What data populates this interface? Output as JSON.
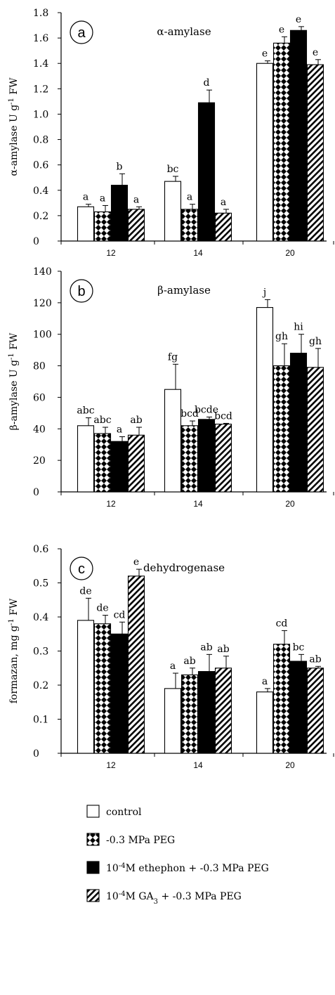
{
  "colors": {
    "axis": "#000000",
    "control_fill": "#ffffff",
    "ethephon_fill": "#000000",
    "pattern_ink": "#000000"
  },
  "legend": [
    {
      "key": "control",
      "pattern": "white",
      "label": "control"
    },
    {
      "key": "peg",
      "pattern": "checker",
      "label": "-0.3 MPa PEG"
    },
    {
      "key": "ethephon",
      "pattern": "black",
      "label_pre": "10",
      "label_sup": "-4",
      "label_post": "M ethephon + -0.3 MPa PEG"
    },
    {
      "key": "ga3",
      "pattern": "diagonal",
      "label_pre": "10",
      "label_sup": "-4",
      "label_mid": "M  GA",
      "label_sub": "3",
      "label_post": " + -0.3 MPa PEG"
    }
  ],
  "chart_data": [
    {
      "type": "bar",
      "panel": "a",
      "inner_title": "α-amylase",
      "ylabel": {
        "pre": "α-amylase U g",
        "sup": "-1",
        "post": " FW"
      },
      "categories": [
        "12",
        "14",
        "20"
      ],
      "ylim": [
        0,
        1.8
      ],
      "yticks": [
        "0",
        "0.2",
        "0.4",
        "0.6",
        "0.8",
        "1.0",
        "1.2",
        "1.4",
        "1.6",
        "1.8"
      ],
      "series": [
        {
          "key": "control",
          "values": [
            0.27,
            0.47,
            1.4
          ],
          "errors": [
            0.02,
            0.04,
            0.02
          ],
          "letters": [
            "a",
            "bc",
            "e"
          ]
        },
        {
          "key": "peg",
          "values": [
            0.23,
            0.25,
            1.56
          ],
          "errors": [
            0.05,
            0.04,
            0.05
          ],
          "letters": [
            "a",
            "a",
            "e"
          ]
        },
        {
          "key": "ethephon",
          "values": [
            0.44,
            1.09,
            1.66
          ],
          "errors": [
            0.09,
            0.1,
            0.03
          ],
          "letters": [
            "b",
            "d",
            "e"
          ]
        },
        {
          "key": "ga3",
          "values": [
            0.25,
            0.22,
            1.39
          ],
          "errors": [
            0.02,
            0.03,
            0.04
          ],
          "letters": [
            "a",
            "a",
            "e"
          ]
        }
      ]
    },
    {
      "type": "bar",
      "panel": "b",
      "inner_title": "β-amylase",
      "ylabel": {
        "pre": "β-amylase U g",
        "sup": "-1",
        "post": " FW"
      },
      "categories": [
        "12",
        "14",
        "20"
      ],
      "ylim": [
        0,
        140
      ],
      "yticks": [
        "0",
        "20",
        "40",
        "60",
        "80",
        "100",
        "120",
        "140"
      ],
      "series": [
        {
          "key": "control",
          "values": [
            42,
            65,
            117
          ],
          "errors": [
            5,
            16,
            5
          ],
          "letters": [
            "abc",
            "fg",
            "j"
          ]
        },
        {
          "key": "peg",
          "values": [
            37,
            42,
            80
          ],
          "errors": [
            4,
            3,
            14
          ],
          "letters": [
            "abc",
            "bcd",
            "gh"
          ]
        },
        {
          "key": "ethephon",
          "values": [
            32,
            46,
            88
          ],
          "errors": [
            3,
            1.5,
            12
          ],
          "letters": [
            "a",
            "bcde",
            "hi"
          ]
        },
        {
          "key": "ga3",
          "values": [
            36,
            43,
            79
          ],
          "errors": [
            5,
            0.5,
            12
          ],
          "letters": [
            "ab",
            "bcd",
            "gh"
          ]
        }
      ]
    },
    {
      "type": "bar",
      "panel": "c",
      "inner_title": "dehydrogenase",
      "ylabel": {
        "pre": "formazan, mg  g",
        "sup": "-1",
        "post": " FW"
      },
      "categories": [
        "12",
        "14",
        "20"
      ],
      "ylim": [
        0,
        0.6
      ],
      "yticks": [
        "0",
        "0.1",
        "0.2",
        "0.3",
        "0.4",
        "0.5",
        "0.6"
      ],
      "series": [
        {
          "key": "control",
          "values": [
            0.39,
            0.19,
            0.18
          ],
          "errors": [
            0.065,
            0.045,
            0.01
          ],
          "letters": [
            "de",
            "a",
            "a"
          ]
        },
        {
          "key": "peg",
          "values": [
            0.38,
            0.23,
            0.32
          ],
          "errors": [
            0.025,
            0.02,
            0.04
          ],
          "letters": [
            "de",
            "ab",
            "cd"
          ]
        },
        {
          "key": "ethephon",
          "values": [
            0.35,
            0.24,
            0.27
          ],
          "errors": [
            0.035,
            0.05,
            0.02
          ],
          "letters": [
            "cd",
            "ab",
            "bc"
          ]
        },
        {
          "key": "ga3",
          "values": [
            0.52,
            0.25,
            0.25
          ],
          "errors": [
            0.02,
            0.035,
            0.005
          ],
          "letters": [
            "e",
            "ab",
            "ab"
          ]
        }
      ]
    }
  ]
}
